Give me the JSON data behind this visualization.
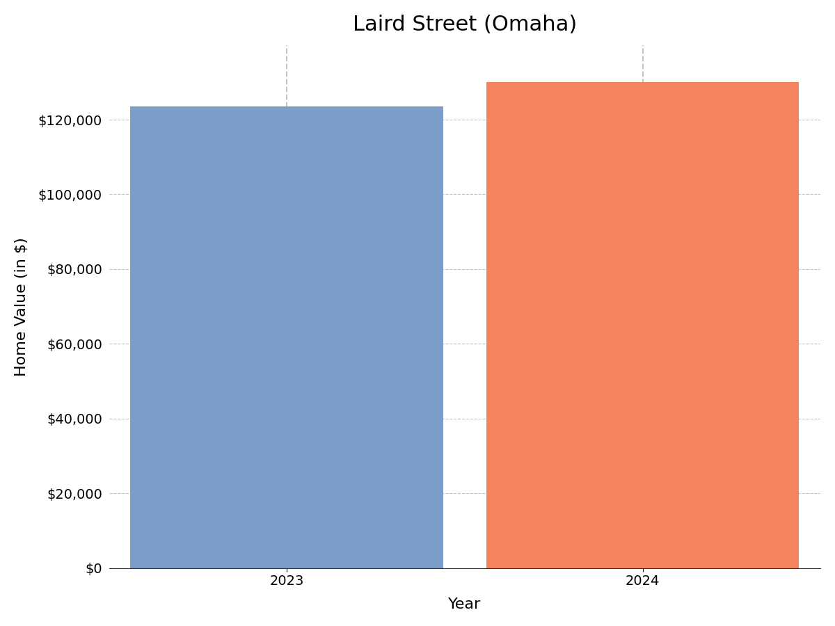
{
  "title": "Laird Street (Omaha)",
  "xlabel": "Year",
  "ylabel": "Home Value (in $)",
  "categories": [
    "2023",
    "2024"
  ],
  "values": [
    123500,
    130000
  ],
  "bar_colors": [
    "#7b9dc8",
    "#f4845f"
  ],
  "ylim": [
    0,
    140000
  ],
  "yticks": [
    0,
    20000,
    40000,
    60000,
    80000,
    100000,
    120000
  ],
  "background_color": "#ffffff",
  "title_fontsize": 22,
  "axis_label_fontsize": 16,
  "tick_fontsize": 14,
  "bar_width": 0.88
}
